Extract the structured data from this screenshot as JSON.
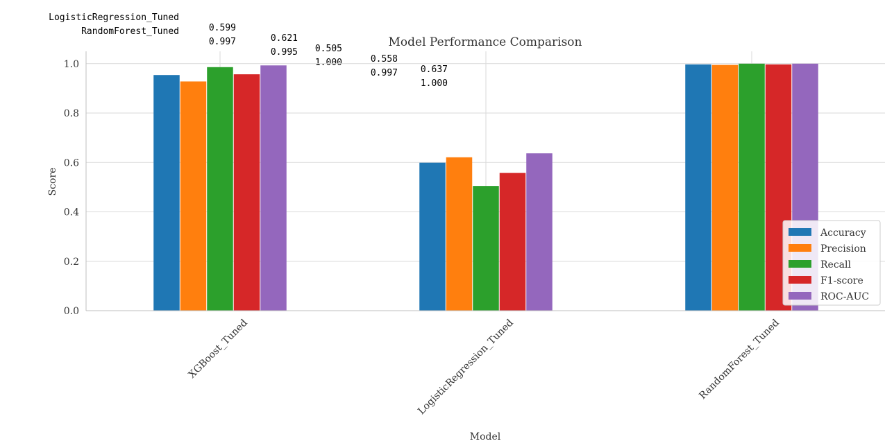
{
  "output_rows": [
    {
      "name": "LogisticRegression_Tuned",
      "values": [
        "0.599",
        "0.621",
        "0.505",
        "0.558",
        "0.637"
      ]
    },
    {
      "name": "RandomForest_Tuned",
      "values": [
        "0.997",
        "0.995",
        "1.000",
        "0.997",
        "1.000"
      ]
    }
  ],
  "chart_data": {
    "type": "bar",
    "title": "Model Performance Comparison",
    "xlabel": "Model",
    "ylabel": "Score",
    "ylim": [
      0,
      1.05
    ],
    "yticks": [
      0.0,
      0.2,
      0.4,
      0.6,
      0.8,
      1.0
    ],
    "ytick_labels": [
      "0.0",
      "0.2",
      "0.4",
      "0.6",
      "0.8",
      "1.0"
    ],
    "categories": [
      "XGBoost_Tuned",
      "LogisticRegression_Tuned",
      "RandomForest_Tuned"
    ],
    "series": [
      {
        "name": "Accuracy",
        "color": "#1f77b4",
        "values": [
          0.954,
          0.599,
          0.997
        ]
      },
      {
        "name": "Precision",
        "color": "#ff7f0e",
        "values": [
          0.928,
          0.621,
          0.995
        ]
      },
      {
        "name": "Recall",
        "color": "#2ca02c",
        "values": [
          0.986,
          0.505,
          1.0
        ]
      },
      {
        "name": "F1-score",
        "color": "#d62728",
        "values": [
          0.957,
          0.558,
          0.997
        ]
      },
      {
        "name": "ROC-AUC",
        "color": "#9467bd",
        "values": [
          0.993,
          0.637,
          1.0
        ]
      }
    ],
    "grid": true,
    "legend_position": "lower-right"
  }
}
